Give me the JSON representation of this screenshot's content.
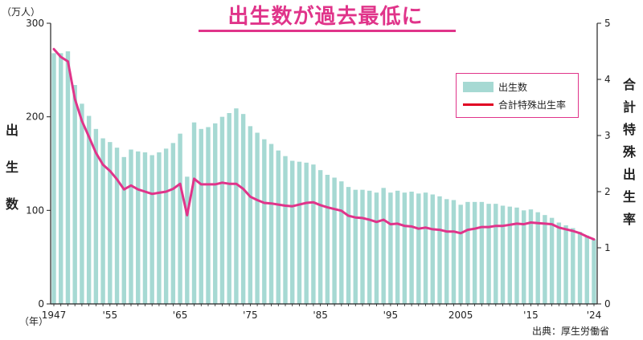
{
  "title": "出生数が過去最低に",
  "left_unit": "（万人）",
  "left_axis_label": "出生数",
  "right_axis_label": "合計特殊出生率",
  "year_unit": "（年）",
  "source": "出典：厚生労働省",
  "legend": {
    "births": "出生数",
    "tfr": "合計特殊出生率"
  },
  "colors": {
    "bars": "#a6d9d3",
    "line": "#e0348a",
    "title": "#e0348a",
    "legend_border": "#e0348a"
  },
  "chart_data": {
    "type": "bar",
    "title": "出生数が過去最低に",
    "grid": false,
    "legend_position": "top-right",
    "x_tick_labels": [
      {
        "year": 1947,
        "label": "1947"
      },
      {
        "year": 1955,
        "label": "'55"
      },
      {
        "year": 1965,
        "label": "'65"
      },
      {
        "year": 1975,
        "label": "'75"
      },
      {
        "year": 1985,
        "label": "'85"
      },
      {
        "year": 1995,
        "label": "'95"
      },
      {
        "year": 2005,
        "label": "2005"
      },
      {
        "year": 2015,
        "label": "'15"
      },
      {
        "year": 2024,
        "label": "'24"
      }
    ],
    "left_axis": {
      "label": "出生数",
      "unit": "（万人）",
      "ylim": [
        0,
        300
      ],
      "ticks": [
        0,
        100,
        200,
        300
      ]
    },
    "right_axis": {
      "label": "合計特殊出生率",
      "ylim": [
        0,
        5
      ],
      "ticks": [
        0,
        1,
        2,
        3,
        4,
        5
      ]
    },
    "years": [
      1947,
      1948,
      1949,
      1950,
      1951,
      1952,
      1953,
      1954,
      1955,
      1956,
      1957,
      1958,
      1959,
      1960,
      1961,
      1962,
      1963,
      1964,
      1965,
      1966,
      1967,
      1968,
      1969,
      1970,
      1971,
      1972,
      1973,
      1974,
      1975,
      1976,
      1977,
      1978,
      1979,
      1980,
      1981,
      1982,
      1983,
      1984,
      1985,
      1986,
      1987,
      1988,
      1989,
      1990,
      1991,
      1992,
      1993,
      1994,
      1995,
      1996,
      1997,
      1998,
      1999,
      2000,
      2001,
      2002,
      2003,
      2004,
      2005,
      2006,
      2007,
      2008,
      2009,
      2010,
      2011,
      2012,
      2013,
      2014,
      2015,
      2016,
      2017,
      2018,
      2019,
      2020,
      2021,
      2022,
      2023,
      2024
    ],
    "series": [
      {
        "name": "出生数",
        "kind": "bar",
        "axis": "left",
        "values": [
          268,
          268,
          270,
          234,
          214,
          201,
          187,
          177,
          173,
          167,
          157,
          165,
          163,
          162,
          159,
          162,
          166,
          172,
          182,
          136,
          194,
          187,
          189,
          193,
          200,
          204,
          209,
          203,
          190,
          183,
          176,
          171,
          164,
          158,
          153,
          152,
          151,
          149,
          143,
          138,
          135,
          131,
          125,
          122,
          122,
          121,
          119,
          124,
          119,
          121,
          119,
          120,
          118,
          119,
          117,
          115,
          112,
          111,
          106,
          109,
          109,
          109,
          107,
          107,
          105,
          104,
          103,
          100,
          101,
          98,
          95,
          92,
          87,
          84,
          81,
          77,
          73,
          69
        ]
      },
      {
        "name": "合計特殊出生率",
        "kind": "line",
        "axis": "right",
        "values": [
          4.54,
          4.4,
          4.32,
          3.65,
          3.26,
          2.98,
          2.69,
          2.48,
          2.37,
          2.22,
          2.04,
          2.11,
          2.04,
          2.0,
          1.96,
          1.98,
          2.0,
          2.05,
          2.14,
          1.58,
          2.23,
          2.13,
          2.13,
          2.13,
          2.16,
          2.14,
          2.14,
          2.05,
          1.91,
          1.85,
          1.8,
          1.79,
          1.77,
          1.75,
          1.74,
          1.77,
          1.8,
          1.81,
          1.76,
          1.72,
          1.69,
          1.66,
          1.57,
          1.54,
          1.53,
          1.5,
          1.46,
          1.5,
          1.42,
          1.43,
          1.39,
          1.38,
          1.34,
          1.36,
          1.33,
          1.32,
          1.29,
          1.29,
          1.26,
          1.32,
          1.34,
          1.37,
          1.37,
          1.39,
          1.39,
          1.41,
          1.43,
          1.42,
          1.45,
          1.44,
          1.43,
          1.42,
          1.36,
          1.33,
          1.3,
          1.26,
          1.2,
          1.15
        ]
      }
    ]
  }
}
